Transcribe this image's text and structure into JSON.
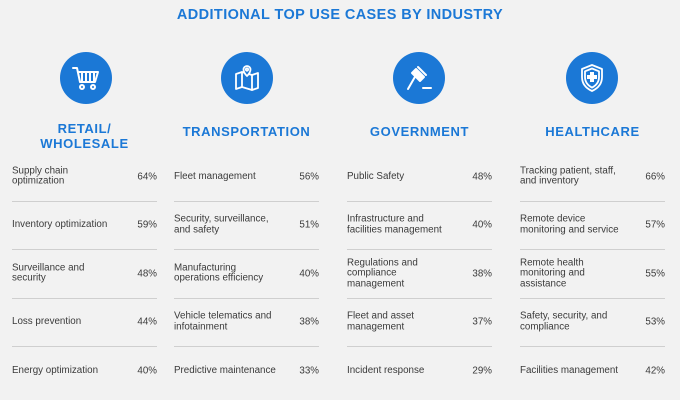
{
  "title": "ADDITIONAL TOP USE CASES BY INDUSTRY",
  "accent_color": "#1b78d6",
  "industries": [
    {
      "name": "RETAIL/ WHOLESALE",
      "icon": "shopping-cart-icon",
      "use_cases": [
        {
          "label": "Supply chain optimization",
          "pct": "64%"
        },
        {
          "label": "Inventory optimization",
          "pct": "59%"
        },
        {
          "label": "Surveillance and security",
          "pct": "48%"
        },
        {
          "label": "Loss prevention",
          "pct": "44%"
        },
        {
          "label": "Energy optimization",
          "pct": "40%"
        }
      ]
    },
    {
      "name": "TRANSPORTATION",
      "icon": "map-pin-icon",
      "use_cases": [
        {
          "label": "Fleet management",
          "pct": "56%"
        },
        {
          "label": "Security, surveillance, and safety",
          "pct": "51%"
        },
        {
          "label": "Manufacturing operations efficiency",
          "pct": "40%"
        },
        {
          "label": "Vehicle telematics and infotainment",
          "pct": "38%"
        },
        {
          "label": "Predictive maintenance",
          "pct": "33%"
        }
      ]
    },
    {
      "name": "GOVERNMENT",
      "icon": "gavel-icon",
      "use_cases": [
        {
          "label": "Public Safety",
          "pct": "48%"
        },
        {
          "label": "Infrastructure and facilities management",
          "pct": "40%"
        },
        {
          "label": "Regulations and compliance management",
          "pct": "38%"
        },
        {
          "label": "Fleet and asset management",
          "pct": "37%"
        },
        {
          "label": "Incident response",
          "pct": "29%"
        }
      ]
    },
    {
      "name": "HEALTHCARE",
      "icon": "medical-shield-icon",
      "use_cases": [
        {
          "label": "Tracking patient, staff, and inventory",
          "pct": "66%"
        },
        {
          "label": "Remote device monitoring and service",
          "pct": "57%"
        },
        {
          "label": "Remote health monitoring and assistance",
          "pct": "55%"
        },
        {
          "label": "Safety, security, and compliance",
          "pct": "53%"
        },
        {
          "label": "Facilities management",
          "pct": "42%"
        }
      ]
    }
  ]
}
